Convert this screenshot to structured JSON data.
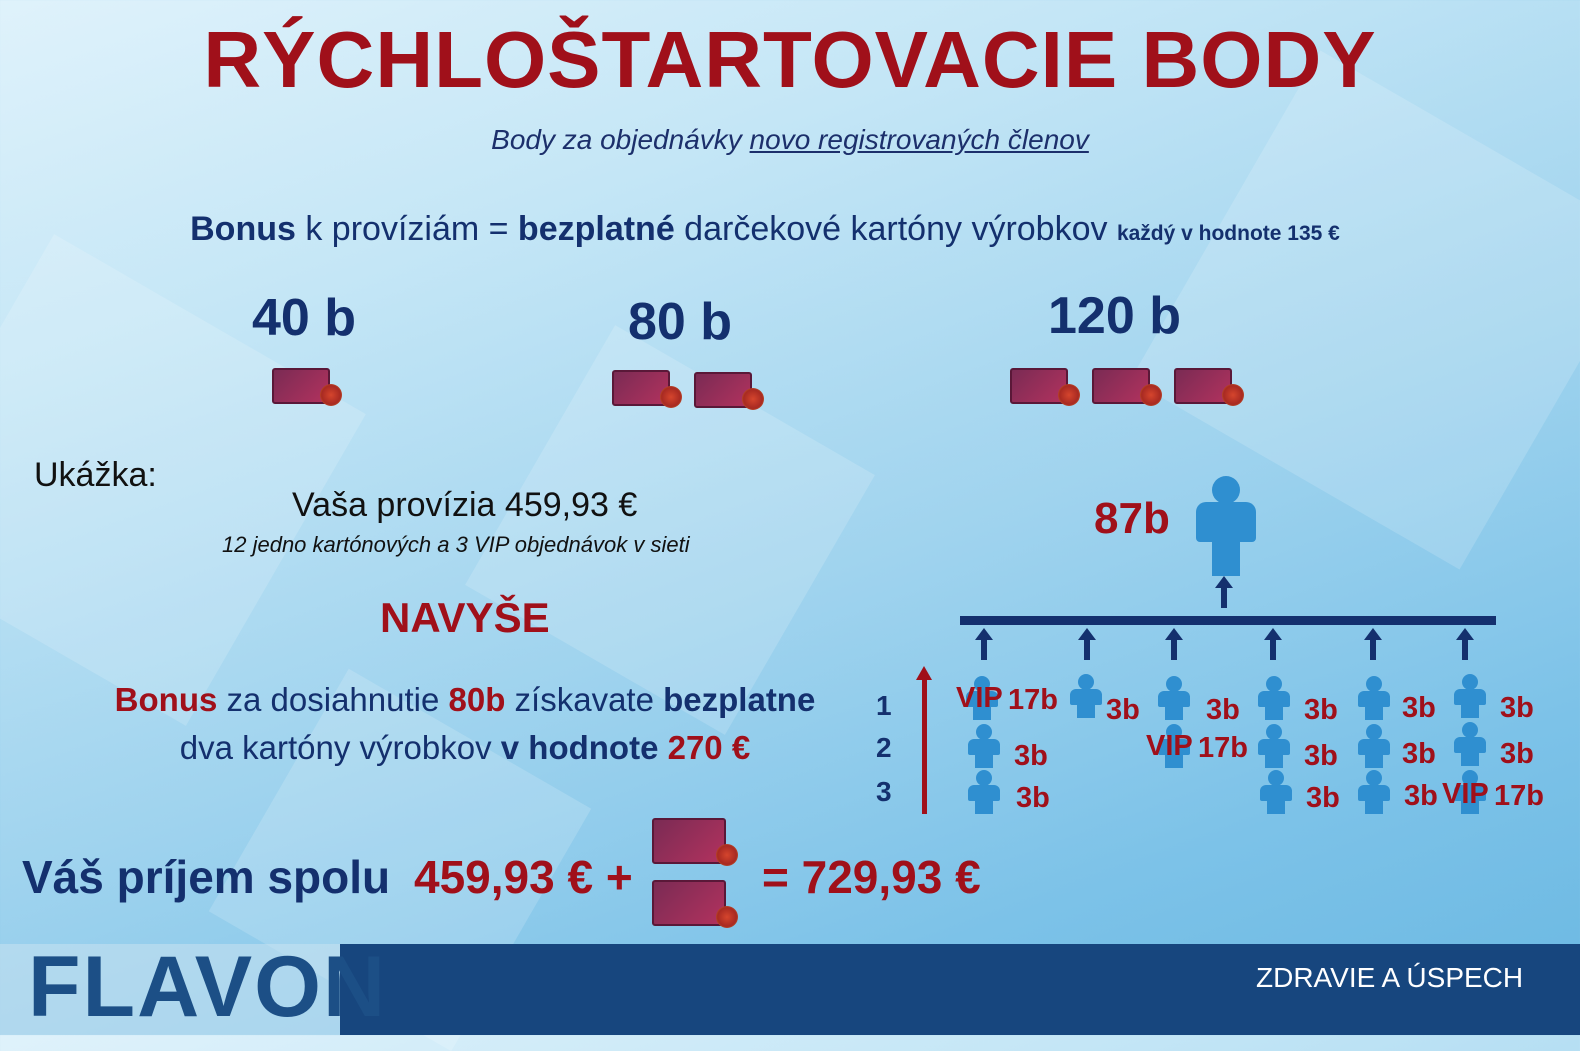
{
  "title": "RÝCHLOŠTARTOVACIE BODY",
  "subtitle": {
    "part1": "Body za objednávky ",
    "part2": "novo registrovaných členov"
  },
  "bonus_line": {
    "b1": "Bonus",
    "t1": " k províziám = ",
    "b2": "bezplatné",
    "t2": " darčekové kartóny výrobkov ",
    "small": "každý v hodnote 135 €"
  },
  "tiers": [
    "40 b",
    "80 b",
    "120 b"
  ],
  "example": {
    "label": "Ukážka:",
    "commission": "Vaša provízia 459,93 €",
    "commission_note": "12 jedno kartónových a 3 VIP objednávok v sieti"
  },
  "extra": {
    "heading": "NAVYŠE",
    "l1a": "Bonus",
    "l1b": " za dosiahnutie ",
    "l1c": "80b",
    "l1d": " získavate ",
    "l1e": "bezplatne",
    "l2a": "dva kartóny výrobkov ",
    "l2b": "v hodnote",
    "l2c": " 270 €"
  },
  "income": {
    "label": "Váš príjem spolu",
    "part1": "459,93 € +",
    "part2": "= 729,93 €"
  },
  "network": {
    "top_points": "87b",
    "levels": [
      "1",
      "2",
      "3"
    ],
    "labels": {
      "vip": "VIP",
      "vip_points": "17b",
      "points": "3b"
    }
  },
  "footer": {
    "logo": "FLAVON",
    "tagline": "ZDRAVIE A ÚSPECH"
  },
  "colors": {
    "red": "#a0101a",
    "navy": "#14306e",
    "person": "#2f8fd0",
    "footer": "#17467e"
  }
}
